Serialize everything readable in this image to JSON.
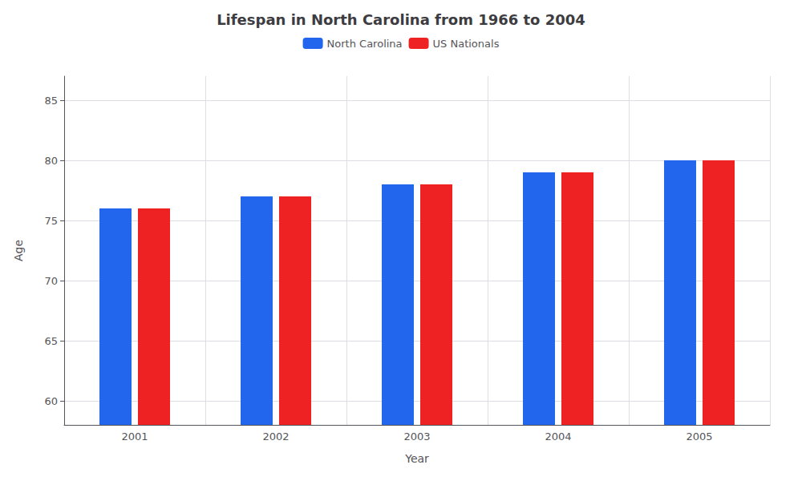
{
  "chart_data": {
    "type": "bar",
    "title": "Lifespan in North Carolina from 1966 to 2004",
    "xlabel": "Year",
    "ylabel": "Age",
    "categories": [
      "2001",
      "2002",
      "2003",
      "2004",
      "2005"
    ],
    "series": [
      {
        "name": "North Carolina",
        "color": "#2266EE",
        "values": [
          76,
          77,
          78,
          79,
          80
        ]
      },
      {
        "name": "US Nationals",
        "color": "#EE2222",
        "values": [
          76,
          77,
          78,
          79,
          80
        ]
      }
    ],
    "ylim": [
      58,
      87
    ],
    "yticks": [
      60,
      65,
      70,
      75,
      80,
      85
    ],
    "grid": true,
    "legend": "top"
  }
}
